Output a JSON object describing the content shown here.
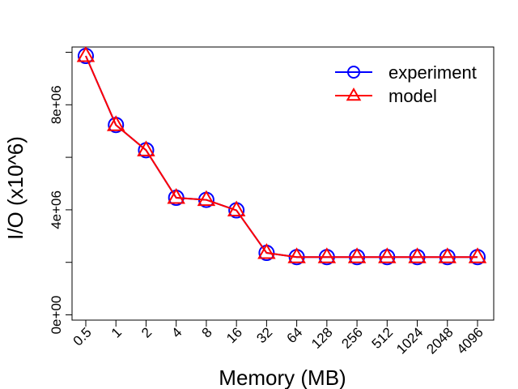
{
  "chart_data": {
    "type": "line",
    "title": "",
    "xlabel": "Memory (MB)",
    "ylabel": "I/O (x10^6)",
    "categories": [
      "0.5",
      "1",
      "2",
      "4",
      "8",
      "16",
      "32",
      "64",
      "128",
      "256",
      "512",
      "1024",
      "2048",
      "4096"
    ],
    "yticks": [
      0,
      4000000,
      8000000
    ],
    "ytick_labels": [
      "0e+00",
      "4e+06",
      "8e+06"
    ],
    "ylim": [
      -200000,
      10200000
    ],
    "grid": false,
    "legend": "top-right",
    "series": [
      {
        "name": "experiment",
        "marker": "circle",
        "color": "#0000ff",
        "values": [
          9860000,
          7230000,
          6270000,
          4460000,
          4380000,
          3980000,
          2360000,
          2200000,
          2200000,
          2200000,
          2200000,
          2200000,
          2200000,
          2200000
        ]
      },
      {
        "name": "model",
        "marker": "triangle",
        "color": "#ff0000",
        "values": [
          9860000,
          7230000,
          6270000,
          4460000,
          4380000,
          3980000,
          2360000,
          2200000,
          2200000,
          2200000,
          2200000,
          2200000,
          2200000,
          2200000
        ]
      }
    ]
  }
}
